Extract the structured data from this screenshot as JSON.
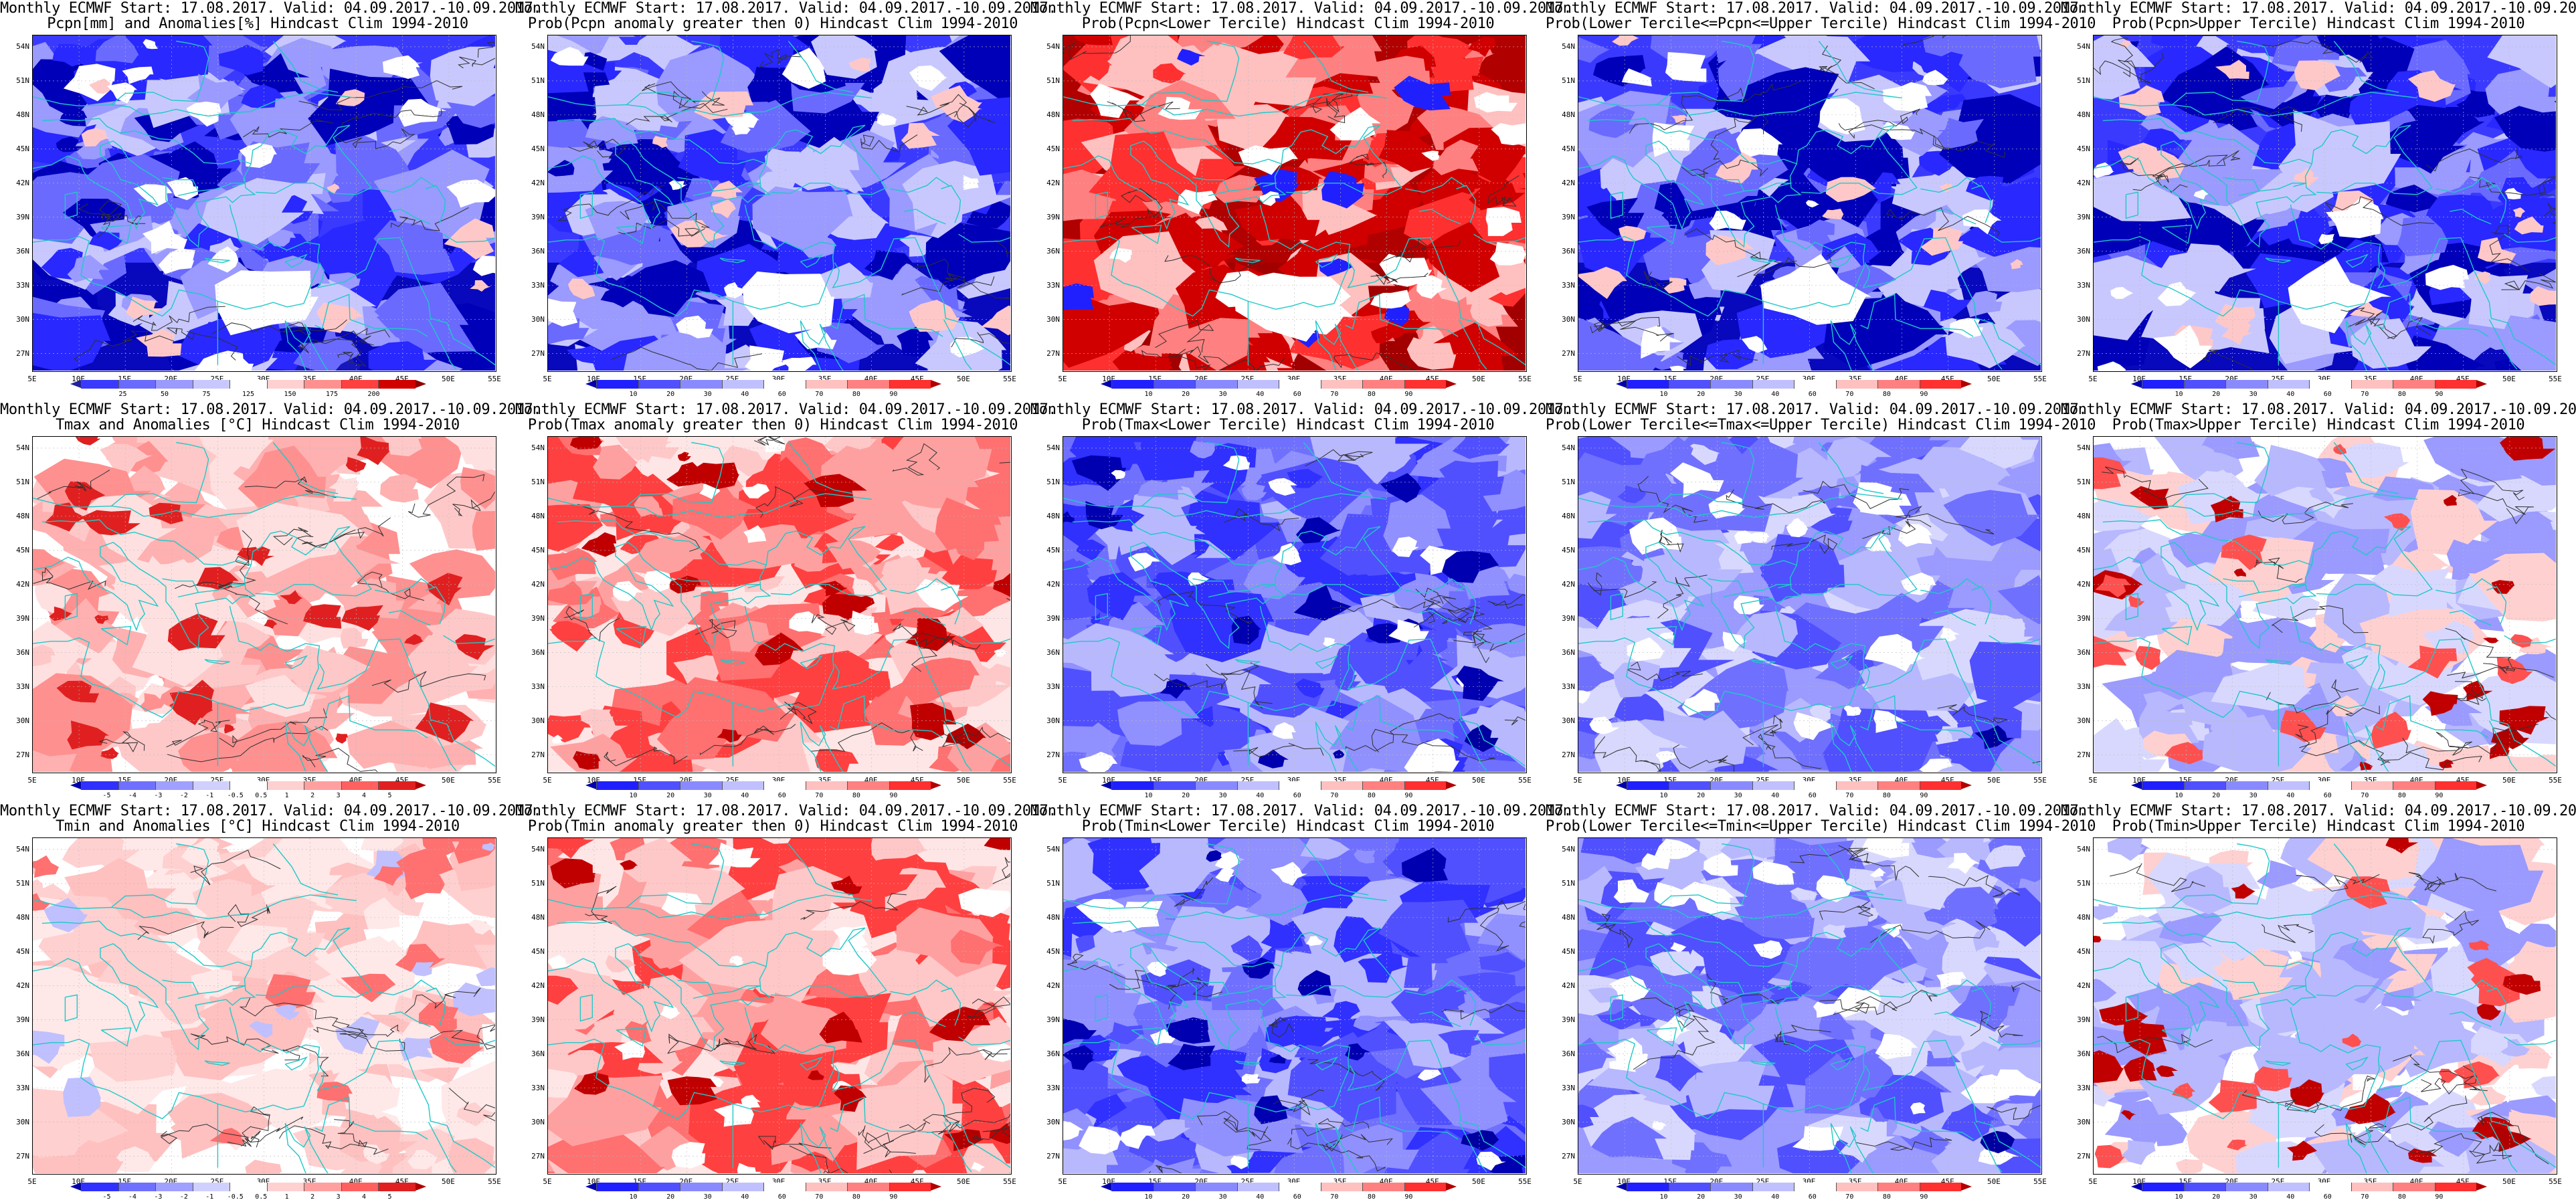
{
  "title_line1": "Monthly ECMWF Start: 17.08.2017. Valid: 04.09.2017.-10.09.2017.",
  "lat_labels": [
    "54N",
    "51N",
    "48N",
    "45N",
    "42N",
    "39N",
    "36N",
    "33N",
    "30N",
    "27N"
  ],
  "lon_labels": [
    "5E",
    "10E",
    "15E",
    "20E",
    "25E",
    "30E",
    "35E",
    "40E",
    "45E",
    "50E",
    "55E"
  ],
  "panels": [
    {
      "name": "pcpn-anomaly",
      "subtitle": "Pcpn[mm] and Anomalies[%] Hindcast Clim 1994-2010",
      "style": "pcpn_anom",
      "colorbar": {
        "colors": [
          "#2020a0",
          "#3a3aff",
          "#6a6aff",
          "#9a9aff",
          "#c8c8ff",
          "#ffffff",
          "#ffd0d0",
          "#ff9090",
          "#ff4040",
          "#d00000",
          "#900000"
        ],
        "ticks": [
          "25",
          "50",
          "75",
          "125",
          "150",
          "175",
          "200"
        ]
      }
    },
    {
      "name": "prob-pcpn-anomaly",
      "subtitle": "Prob(Pcpn anomaly greater then 0) Hindcast Clim 1994-2010",
      "style": "pcpn_anom",
      "colorbar": {
        "colors": [
          "#0000b0",
          "#2020ff",
          "#5050ff",
          "#8a8aff",
          "#c0c0ff",
          "#ffffff",
          "#ffc0c0",
          "#ff8080",
          "#ff3030",
          "#b00000"
        ],
        "ticks": [
          "10",
          "20",
          "30",
          "40",
          "60",
          "70",
          "80",
          "90"
        ]
      }
    },
    {
      "name": "prob-pcpn-lower-tercile",
      "subtitle": "Prob(Pcpn<Lower Tercile) Hindcast Clim 1994-2010",
      "style": "pcpn_lower",
      "colorbar": {
        "colors": [
          "#0000b0",
          "#2020ff",
          "#5050ff",
          "#8a8aff",
          "#c0c0ff",
          "#ffffff",
          "#ffc0c0",
          "#ff8080",
          "#ff3030",
          "#b00000"
        ],
        "ticks": [
          "10",
          "20",
          "30",
          "40",
          "60",
          "70",
          "80",
          "90"
        ]
      }
    },
    {
      "name": "prob-pcpn-middle-tercile",
      "subtitle": "Prob(Lower Tercile<=Pcpn<=Upper Tercile) Hindcast Clim 1994-2010",
      "style": "pcpn_anom",
      "colorbar": {
        "colors": [
          "#0000b0",
          "#2020ff",
          "#5050ff",
          "#8a8aff",
          "#c0c0ff",
          "#ffffff",
          "#ffc0c0",
          "#ff8080",
          "#ff3030",
          "#b00000"
        ],
        "ticks": [
          "10",
          "20",
          "30",
          "40",
          "60",
          "70",
          "80",
          "90"
        ]
      }
    },
    {
      "name": "prob-pcpn-upper-tercile",
      "subtitle": "Prob(Pcpn>Upper Tercile) Hindcast Clim 1994-2010",
      "style": "pcpn_anom",
      "colorbar": {
        "colors": [
          "#0000b0",
          "#2020ff",
          "#5050ff",
          "#8a8aff",
          "#c0c0ff",
          "#ffffff",
          "#ffc0c0",
          "#ff8080",
          "#ff3030",
          "#b00000"
        ],
        "ticks": [
          "10",
          "20",
          "30",
          "40",
          "60",
          "70",
          "80",
          "90"
        ]
      }
    },
    {
      "name": "tmax-anomaly",
      "subtitle": "Tmax and Anomalies [°C] Hindcast Clim 1994-2010",
      "style": "warm",
      "colorbar": {
        "colors": [
          "#0000b0",
          "#3030ff",
          "#7070ff",
          "#a0a0ff",
          "#d0d0ff",
          "#ffffff",
          "#ffd0d0",
          "#ffa0a0",
          "#ff6060",
          "#e02020",
          "#b00000"
        ],
        "ticks": [
          "-5",
          "-4",
          "-3",
          "-2",
          "-1",
          "-0.5",
          "0.5",
          "1",
          "2",
          "3",
          "4",
          "5"
        ]
      }
    },
    {
      "name": "prob-tmax-anomaly",
      "subtitle": "Prob(Tmax anomaly greater then 0) Hindcast Clim 1994-2010",
      "style": "warm_strong",
      "colorbar": {
        "colors": [
          "#0000b0",
          "#2020ff",
          "#5050ff",
          "#8a8aff",
          "#c0c0ff",
          "#ffffff",
          "#ffc0c0",
          "#ff8080",
          "#ff3030",
          "#b00000"
        ],
        "ticks": [
          "10",
          "20",
          "30",
          "40",
          "60",
          "70",
          "80",
          "90"
        ]
      }
    },
    {
      "name": "prob-tmax-lower-tercile",
      "subtitle": "Prob(Tmax<Lower Tercile) Hindcast Clim 1994-2010",
      "style": "cool",
      "colorbar": {
        "colors": [
          "#0000b0",
          "#2020ff",
          "#5050ff",
          "#8a8aff",
          "#c0c0ff",
          "#ffffff",
          "#ffc0c0",
          "#ff8080",
          "#ff3030",
          "#b00000"
        ],
        "ticks": [
          "10",
          "20",
          "30",
          "40",
          "60",
          "70",
          "80",
          "90"
        ]
      }
    },
    {
      "name": "prob-tmax-middle-tercile",
      "subtitle": "Prob(Lower Tercile<=Tmax<=Upper Tercile) Hindcast Clim 1994-2010",
      "style": "cool_light",
      "colorbar": {
        "colors": [
          "#0000b0",
          "#2020ff",
          "#5050ff",
          "#8a8aff",
          "#c0c0ff",
          "#ffffff",
          "#ffc0c0",
          "#ff8080",
          "#ff3030",
          "#b00000"
        ],
        "ticks": [
          "10",
          "20",
          "30",
          "40",
          "60",
          "70",
          "80",
          "90"
        ]
      }
    },
    {
      "name": "prob-tmax-upper-tercile",
      "subtitle": "Prob(Tmax>Upper Tercile) Hindcast Clim 1994-2010",
      "style": "mixed",
      "colorbar": {
        "colors": [
          "#0000b0",
          "#2020ff",
          "#5050ff",
          "#8a8aff",
          "#c0c0ff",
          "#ffffff",
          "#ffc0c0",
          "#ff8080",
          "#ff3030",
          "#b00000"
        ],
        "ticks": [
          "10",
          "20",
          "30",
          "40",
          "60",
          "70",
          "80",
          "90"
        ]
      }
    },
    {
      "name": "tmin-anomaly",
      "subtitle": "Tmin and Anomalies [°C] Hindcast Clim 1994-2010",
      "style": "warm_light",
      "colorbar": {
        "colors": [
          "#0000b0",
          "#3030ff",
          "#7070ff",
          "#a0a0ff",
          "#d0d0ff",
          "#ffffff",
          "#ffd0d0",
          "#ffa0a0",
          "#ff6060",
          "#e02020",
          "#b00000"
        ],
        "ticks": [
          "-5",
          "-4",
          "-3",
          "-2",
          "-1",
          "-0.5",
          "0.5",
          "1",
          "2",
          "3",
          "4",
          "5"
        ]
      }
    },
    {
      "name": "prob-tmin-anomaly",
      "subtitle": "Prob(Tmin anomaly greater then 0) Hindcast Clim 1994-2010",
      "style": "warm_strong",
      "colorbar": {
        "colors": [
          "#0000b0",
          "#2020ff",
          "#5050ff",
          "#8a8aff",
          "#c0c0ff",
          "#ffffff",
          "#ffc0c0",
          "#ff8080",
          "#ff3030",
          "#b00000"
        ],
        "ticks": [
          "10",
          "20",
          "30",
          "40",
          "60",
          "70",
          "80",
          "90"
        ]
      }
    },
    {
      "name": "prob-tmin-lower-tercile",
      "subtitle": "Prob(Tmin<Lower Tercile) Hindcast Clim 1994-2010",
      "style": "cool",
      "colorbar": {
        "colors": [
          "#0000b0",
          "#2020ff",
          "#5050ff",
          "#8a8aff",
          "#c0c0ff",
          "#ffffff",
          "#ffc0c0",
          "#ff8080",
          "#ff3030",
          "#b00000"
        ],
        "ticks": [
          "10",
          "20",
          "30",
          "40",
          "60",
          "70",
          "80",
          "90"
        ]
      }
    },
    {
      "name": "prob-tmin-middle-tercile",
      "subtitle": "Prob(Lower Tercile<=Tmin<=Upper Tercile) Hindcast Clim 1994-2010",
      "style": "cool_light",
      "colorbar": {
        "colors": [
          "#0000b0",
          "#2020ff",
          "#5050ff",
          "#8a8aff",
          "#c0c0ff",
          "#ffffff",
          "#ffc0c0",
          "#ff8080",
          "#ff3030",
          "#b00000"
        ],
        "ticks": [
          "10",
          "20",
          "30",
          "40",
          "60",
          "70",
          "80",
          "90"
        ]
      }
    },
    {
      "name": "prob-tmin-upper-tercile",
      "subtitle": "Prob(Tmin>Upper Tercile) Hindcast Clim 1994-2010",
      "style": "mixed",
      "colorbar": {
        "colors": [
          "#0000b0",
          "#2020ff",
          "#5050ff",
          "#8a8aff",
          "#c0c0ff",
          "#ffffff",
          "#ffc0c0",
          "#ff8080",
          "#ff3030",
          "#b00000"
        ],
        "ticks": [
          "10",
          "20",
          "30",
          "40",
          "60",
          "70",
          "80",
          "90"
        ]
      }
    }
  ],
  "colors": {
    "coastline": "#20c8c8",
    "contour": "#303030",
    "grid": "#bbbbbb"
  }
}
